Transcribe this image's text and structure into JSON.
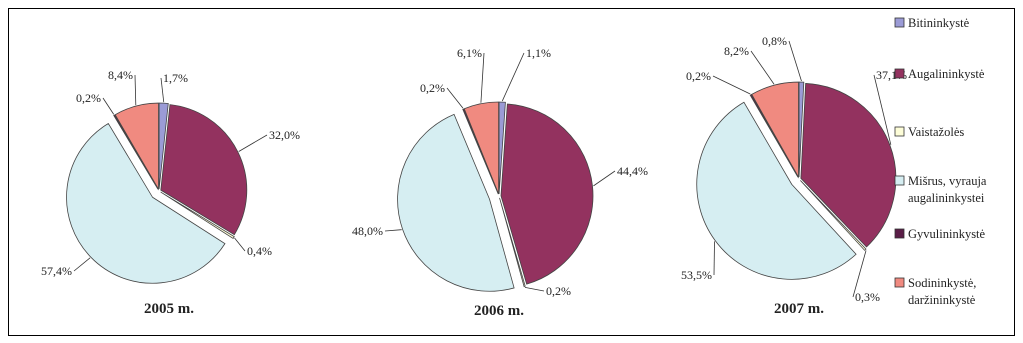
{
  "chart_data": [
    {
      "type": "pie",
      "label": "2005 m.",
      "slices": [
        {
          "category": "Bitininkystė",
          "value": 1.7,
          "label": "1,7%"
        },
        {
          "category": "Augalininkystė",
          "value": 32.0,
          "label": "32,0%"
        },
        {
          "category": "Vaistažolės",
          "value": 0.4,
          "label": "0,4%"
        },
        {
          "category": "Mišrus, vyrauja augalininkystei",
          "value": 57.4,
          "label": "57,4%"
        },
        {
          "category": "Gyvulininkystė",
          "value": 0.2,
          "label": "0,2%"
        },
        {
          "category": "Sodininkystė, daržininkystė",
          "value": 8.4,
          "label": "8,4%"
        }
      ]
    },
    {
      "type": "pie",
      "label": "2006 m.",
      "slices": [
        {
          "category": "Bitininkystė",
          "value": 1.1,
          "label": "1,1%"
        },
        {
          "category": "Augalininkystė",
          "value": 44.4,
          "label": "44,4%"
        },
        {
          "category": "Vaistažolės",
          "value": 0.2,
          "label": "0,2%"
        },
        {
          "category": "Mišrus, vyrauja augalininkystei",
          "value": 48.0,
          "label": "48,0%"
        },
        {
          "category": "Gyvulininkystė",
          "value": 0.2,
          "label": "0,2%"
        },
        {
          "category": "Sodininkystė, daržininkystė",
          "value": 6.1,
          "label": "6,1%"
        }
      ]
    },
    {
      "type": "pie",
      "label": "2007 m.",
      "slices": [
        {
          "category": "Bitininkystė",
          "value": 0.8,
          "label": "0,8%"
        },
        {
          "category": "Augalininkystė",
          "value": 37.1,
          "label": "37,1%"
        },
        {
          "category": "Vaistažolės",
          "value": 0.3,
          "label": "0,3%"
        },
        {
          "category": "Mišrus, vyrauja augalininkystei",
          "value": 53.5,
          "label": "53,5%"
        },
        {
          "category": "Gyvulininkystė",
          "value": 0.2,
          "label": "0,2%"
        },
        {
          "category": "Sodininkystė, daržininkystė",
          "value": 8.2,
          "label": "8,2%"
        }
      ]
    }
  ],
  "legend": {
    "placement": "right",
    "items": [
      {
        "lines": [
          "Bitininkystė"
        ],
        "color": "#9b9bd6"
      },
      {
        "lines": [
          "Augalininkystė"
        ],
        "color": "#93325f"
      },
      {
        "lines": [
          "Vaistažolės"
        ],
        "color": "#fdfdd8"
      },
      {
        "lines": [
          "Mišrus, vyrauja",
          "augalininkystei"
        ],
        "color": "#d6eef2"
      },
      {
        "lines": [
          "Gyvulininkystė"
        ],
        "color": "#5a1d47"
      },
      {
        "lines": [
          "Sodininkystė,",
          "daržininkystė"
        ],
        "color": "#f08a80"
      }
    ]
  }
}
